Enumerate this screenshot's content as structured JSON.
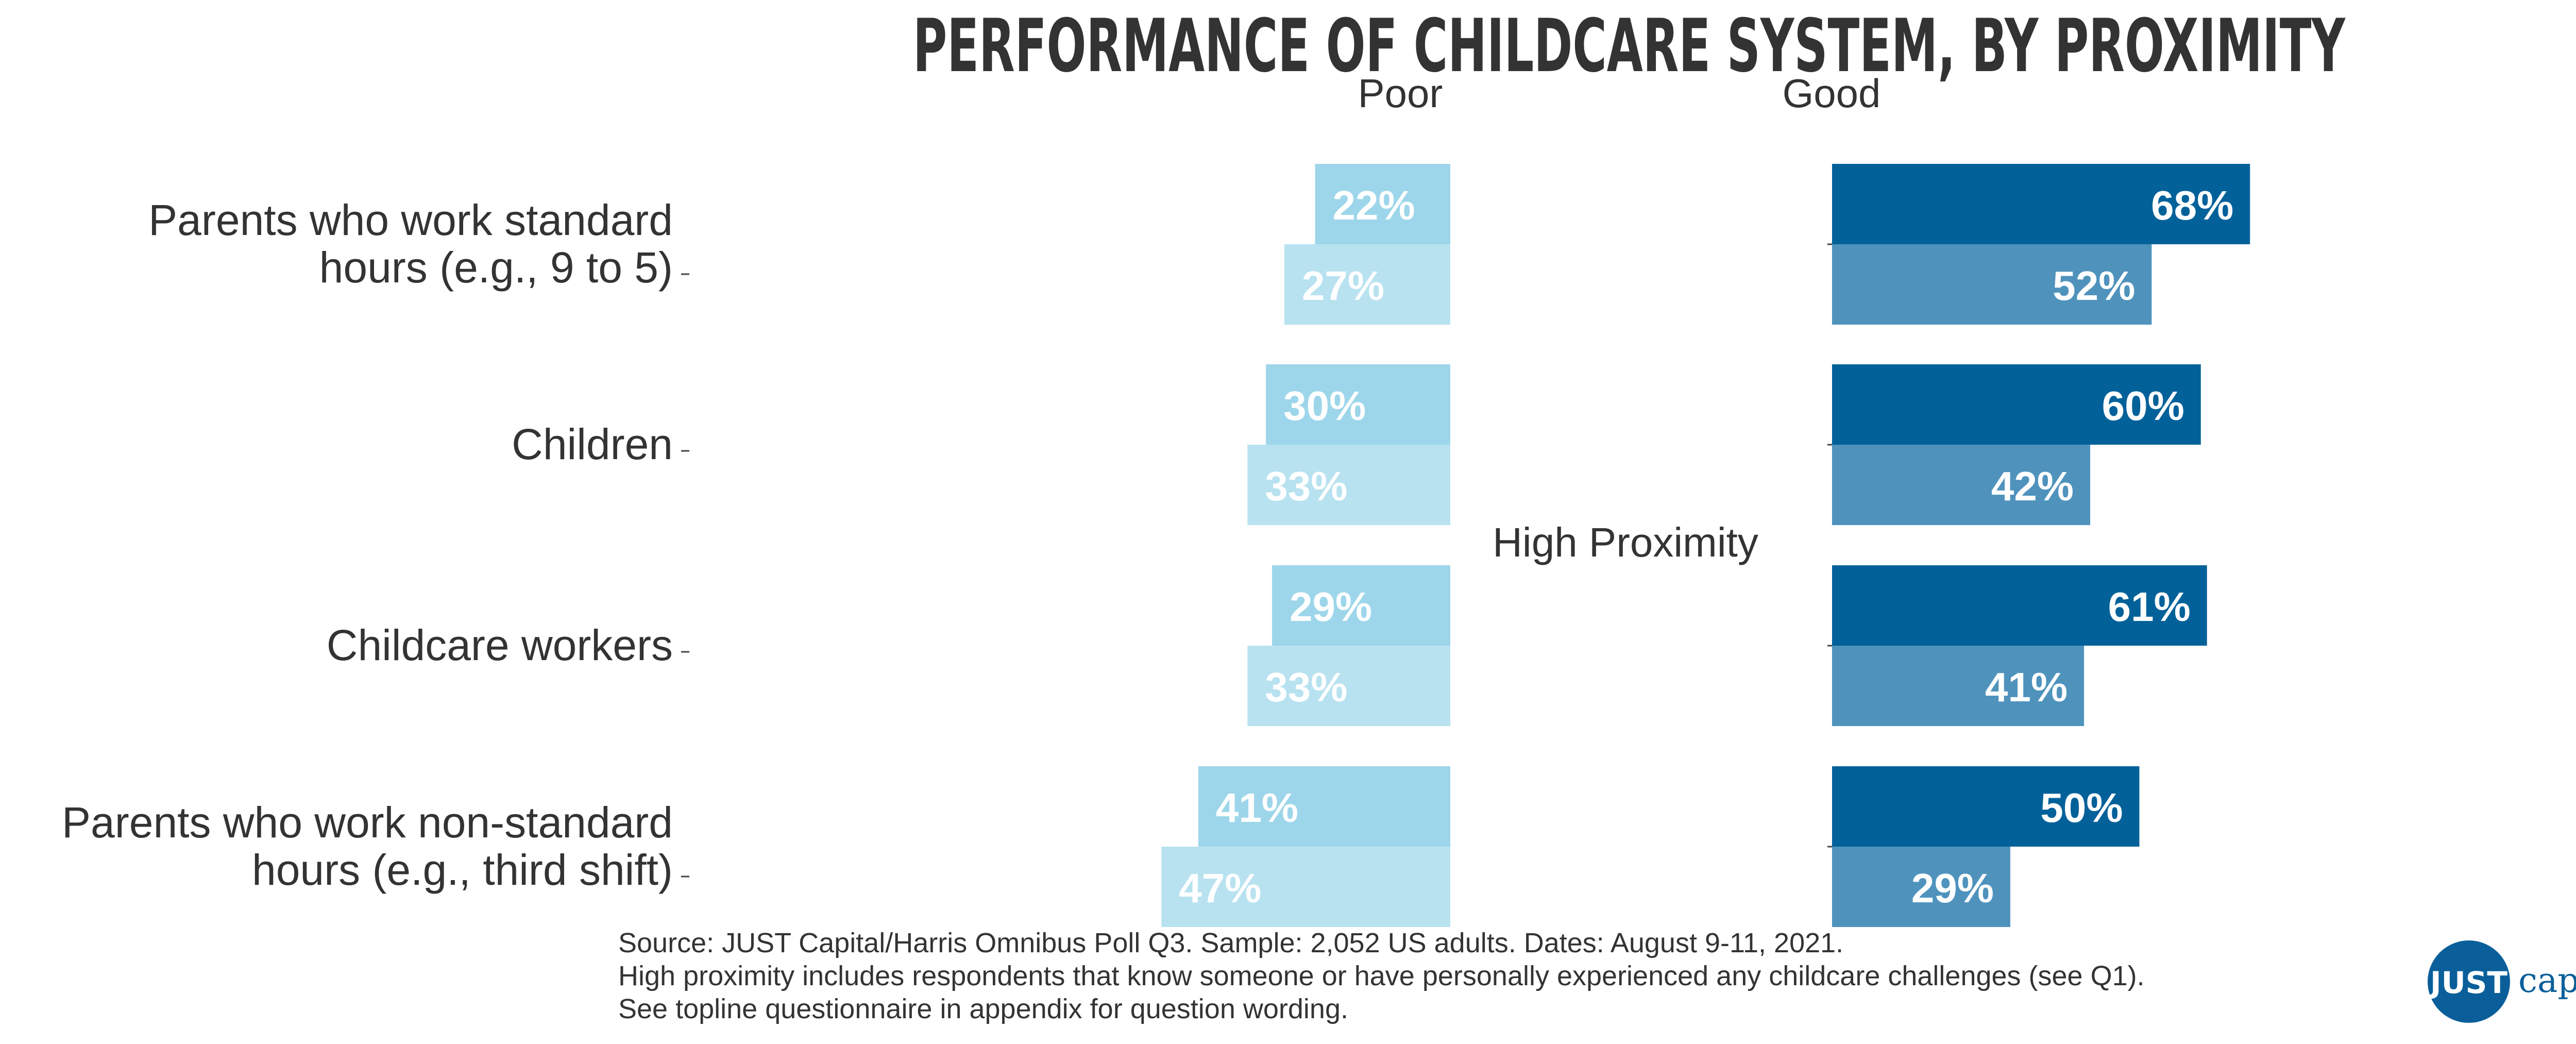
{
  "chart_data": {
    "type": "bar",
    "title": "PERFORMANCE OF CHILDCARE SYSTEM, BY PROXIMITY",
    "panels": [
      "Poor",
      "Good"
    ],
    "center_label": "High Proximity",
    "categories": [
      [
        "Parents who work standard",
        "hours (e.g., 9 to 5)"
      ],
      [
        "Children"
      ],
      [
        "Childcare workers"
      ],
      [
        "Parents who work non-standard",
        "hours (e.g., third shift)"
      ]
    ],
    "series": [
      {
        "panel": "Poor",
        "values": [
          22,
          30,
          29,
          41
        ],
        "color": "#9dd6ea"
      },
      {
        "panel": "Poor",
        "values": [
          27,
          33,
          33,
          47
        ],
        "color": "#b8e2f0"
      },
      {
        "panel": "Good",
        "values": [
          68,
          60,
          61,
          50
        ],
        "color": "#03619a"
      },
      {
        "panel": "Good",
        "values": [
          52,
          42,
          41,
          29
        ],
        "color": "#4f93bd"
      }
    ],
    "value_suffix": "%",
    "xlim": [
      0,
      70
    ]
  },
  "footnote": {
    "lines": [
      "Source: JUST Capital/Harris Omnibus Poll Q3. Sample: 2,052 US adults. Dates: August 9-11, 2021.",
      "High proximity includes respondents that know someone or have personally experienced any childcare challenges (see Q1).",
      "See topline questionnaire in appendix for question wording."
    ]
  },
  "logo": {
    "mark": "JUST",
    "word": "capital",
    "color": "#0a5f9a"
  }
}
